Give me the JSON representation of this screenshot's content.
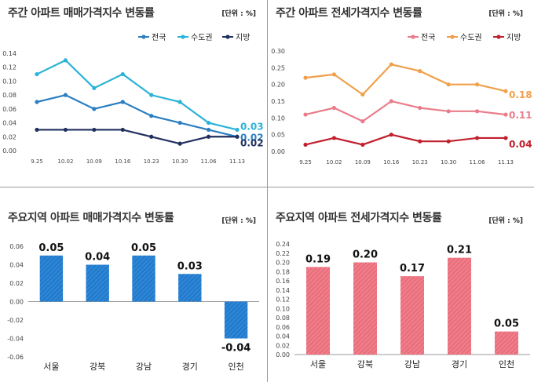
{
  "chart_data": [
    {
      "type": "line",
      "title": "주간 아파트 매매가격지수 변동률",
      "unit": "[단위 : %]",
      "categories": [
        "9.25",
        "10.02",
        "10.09",
        "10.16",
        "10.23",
        "10.30",
        "11.06",
        "11.13"
      ],
      "ylim": [
        0,
        0.14
      ],
      "yticks": [
        "0.00",
        "0.02",
        "0.04",
        "0.06",
        "0.08",
        "0.10",
        "0.12",
        "0.14"
      ],
      "series": [
        {
          "name": "전국",
          "values": [
            0.07,
            0.08,
            0.06,
            0.07,
            0.05,
            0.04,
            0.03,
            0.02
          ],
          "end_label": "0.02",
          "color": "#2b7ec1"
        },
        {
          "name": "수도권",
          "values": [
            0.11,
            0.13,
            0.09,
            0.11,
            0.08,
            0.07,
            0.04,
            0.03
          ],
          "end_label": "0.03",
          "color": "#2ab3d8"
        },
        {
          "name": "지방",
          "values": [
            0.03,
            0.03,
            0.03,
            0.03,
            0.02,
            0.01,
            0.02,
            0.02
          ],
          "end_label": "0.02",
          "color": "#1f2f5e"
        }
      ]
    },
    {
      "type": "line",
      "title": "주간 아파트 전세가격지수 변동률",
      "unit": "[단위 : %]",
      "categories": [
        "9.25",
        "10.02",
        "10.09",
        "10.16",
        "10.23",
        "10.30",
        "11.06",
        "11.13"
      ],
      "ylim": [
        0,
        0.3
      ],
      "yticks": [
        "0.00",
        "0.05",
        "0.10",
        "0.15",
        "0.20",
        "0.25",
        "0.30"
      ],
      "series": [
        {
          "name": "전국",
          "values": [
            0.11,
            0.13,
            0.09,
            0.15,
            0.13,
            0.12,
            0.12,
            0.11
          ],
          "end_label": "0.11",
          "color": "#ea7c8a"
        },
        {
          "name": "수도권",
          "values": [
            0.22,
            0.23,
            0.17,
            0.26,
            0.24,
            0.2,
            0.2,
            0.18
          ],
          "end_label": "0.18",
          "color": "#f0a04b"
        },
        {
          "name": "지방",
          "values": [
            0.02,
            0.04,
            0.02,
            0.05,
            0.03,
            0.03,
            0.04,
            0.04
          ],
          "end_label": "0.04",
          "color": "#c0202c"
        }
      ]
    },
    {
      "type": "bar",
      "title": "주요지역 아파트 매매가격지수 변동률",
      "unit": "[단위 : %]",
      "categories": [
        "서울",
        "강북",
        "강남",
        "경기",
        "인천"
      ],
      "values": [
        0.05,
        0.04,
        0.05,
        0.03,
        -0.04
      ],
      "labels": [
        "0.05",
        "0.04",
        "0.05",
        "0.03",
        "-0.04"
      ],
      "ylim": [
        -0.06,
        0.06
      ],
      "yticks": [
        "0.06",
        "0.04",
        "0.02",
        "0.00",
        "-0.02",
        "-0.04",
        "-0.06"
      ],
      "color": "#2b86d8",
      "hatch": "#1a5fa8"
    },
    {
      "type": "bar",
      "title": "주요지역 아파트 전세가격지수 변동률",
      "unit": "[단위 : %]",
      "categories": [
        "서울",
        "강북",
        "강남",
        "경기",
        "인천"
      ],
      "values": [
        0.19,
        0.2,
        0.17,
        0.21,
        0.05
      ],
      "labels": [
        "0.19",
        "0.20",
        "0.17",
        "0.21",
        "0.05"
      ],
      "ylim": [
        0,
        0.24
      ],
      "yticks": [
        "0.00",
        "0.02",
        "0.04",
        "0.06",
        "0.08",
        "0.10",
        "0.12",
        "0.14",
        "0.16",
        "0.18",
        "0.20",
        "0.22",
        "0.24"
      ],
      "color": "#f07c88",
      "hatch": "#d8546a"
    }
  ]
}
